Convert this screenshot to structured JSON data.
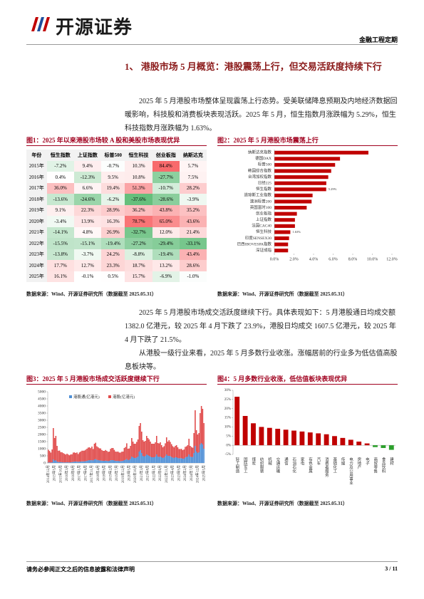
{
  "header": {
    "logo": "开源证券",
    "tag": "金融工程定期"
  },
  "section_title": "1、 港股市场 5 月概览：港股震荡上行，但交易活跃度持续下行",
  "paragraphs": [
    "2025 年 5 月港股市场整体呈现震荡上行态势。受美联储降息预期及内地经济数据回暖影响，科技股和消费板块表现活跃。2025 年 5 月，恒生指数月涨跌幅为 5.29%，恒生科技指数月涨跌幅为 1.63%。",
    "2025 年 5 月港股市场成交活跃度继续下行。具体表现如下：5 月港股通日均成交额 1382.0 亿港元，较 2025 年 4 月下跌了 23.9%，港股日均成交 1607.5 亿港元，较 2025 年 4 月下跌了 21.5%。",
    "从港股一级行业来看，2025 年 5 月多数行业收涨。涨幅居前的行业多为低估值高股息板块等。"
  ],
  "figure1": {
    "title": "图1：2025 年以来港股市场较 A 股和美股市场表现优异",
    "table": {
      "header": [
        "年份",
        "恒生指数",
        "上证指数",
        "标普500",
        "恒生科技",
        "创业板指",
        "纳斯达克"
      ],
      "rows": [
        [
          "2015年",
          "-7.2%",
          "9.4%",
          "-0.7%",
          "10.3%",
          "84.4%",
          "5.7%"
        ],
        [
          "2016年",
          "0.4%",
          "-12.3%",
          "9.5%",
          "10.8%",
          "-27.7%",
          "7.5%"
        ],
        [
          "2017年",
          "36.0%",
          "6.6%",
          "19.4%",
          "51.3%",
          "-10.7%",
          "28.2%"
        ],
        [
          "2018年",
          "-13.6%",
          "-24.6%",
          "-6.2%",
          "-37.6%",
          "-28.6%",
          "-3.9%"
        ],
        [
          "2019年",
          "9.1%",
          "22.3%",
          "28.9%",
          "36.2%",
          "43.8%",
          "35.2%"
        ],
        [
          "2020年",
          "-3.4%",
          "13.9%",
          "16.3%",
          "78.7%",
          "65.0%",
          "43.6%"
        ],
        [
          "2021年",
          "-14.1%",
          "4.8%",
          "26.9%",
          "-32.7%",
          "12.0%",
          "21.4%"
        ],
        [
          "2022年",
          "-15.5%",
          "-15.1%",
          "-19.4%",
          "-27.2%",
          "-29.4%",
          "-33.1%"
        ],
        [
          "2023年",
          "-13.8%",
          "-3.7%",
          "24.2%",
          "-8.8%",
          "-19.4%",
          "43.4%"
        ],
        [
          "2024年",
          "17.7%",
          "12.7%",
          "23.3%",
          "18.7%",
          "13.2%",
          "28.6%"
        ],
        [
          "2025年",
          "16.1%",
          "-0.1%",
          "0.5%",
          "15.7%",
          "-6.9%",
          "-1.0%"
        ]
      ]
    },
    "source": "数据来源：Wind、开源证券研究所（数据截至 2025.05.31）"
  },
  "chart_data": [
    {
      "type": "hbar",
      "title": "图2：2025 年 5 月港股市场震荡上行",
      "color": "#c00000",
      "categories": [
        "纳斯达克指数",
        "德国DAX",
        "标普500",
        "韩国综合指数",
        "台湾加权指数",
        "日经225",
        "恒生指数",
        "道琼斯工业指数",
        "澳洲标普200",
        "英国富时100",
        "创业板指",
        "上证指数",
        "法国CAC40",
        "恒生科技",
        "印度SENSEX30",
        "巴西IBOVESPA指数",
        "深证成指"
      ],
      "values": [
        9.6,
        6.7,
        6.2,
        5.8,
        5.5,
        5.3,
        5.29,
        3.9,
        3.8,
        3.3,
        2.3,
        2.1,
        2.1,
        1.63,
        1.5,
        1.4,
        1.4
      ],
      "value_labels": [
        null,
        null,
        null,
        null,
        null,
        null,
        "5.29%",
        null,
        null,
        null,
        null,
        null,
        null,
        "1.63%",
        null,
        null,
        null
      ],
      "xlim": [
        0,
        12
      ],
      "xticks": [
        {
          "value": 0,
          "label": "0.0%"
        },
        {
          "value": 2,
          "label": "2.0%"
        },
        {
          "value": 4,
          "label": "4.0%"
        },
        {
          "value": 6,
          "label": "6.0%"
        },
        {
          "value": 8,
          "label": "8.0%"
        },
        {
          "value": 10,
          "label": "10.0%"
        },
        {
          "value": 12,
          "label": "12.0%"
        }
      ],
      "grid": false,
      "source": "数据来源：Wind、开源证券研究所（数据截至 2025.05.31）"
    },
    {
      "type": "stacked_bar",
      "title": "图3：2025 年 5 月港股市场成交活跃度继续下行",
      "categories": [
        "2014年12月",
        null,
        null,
        null,
        null,
        "2015年5月",
        null,
        null,
        null,
        null,
        "2015年10月",
        null,
        null,
        null,
        null,
        "2016年3月",
        null,
        null,
        null,
        null,
        "2016年8月",
        null,
        null,
        null,
        null,
        "2017年1月",
        null,
        null,
        null,
        null,
        "2017年6月",
        null,
        null,
        null,
        null,
        "2017年11月",
        null,
        null,
        null,
        null,
        "2018年4月",
        null,
        null,
        null,
        null,
        "2018年9月",
        null,
        null,
        null,
        null,
        "2019年2月",
        null,
        null,
        null,
        null,
        "2019年7月",
        null,
        null,
        null,
        null,
        "2019年12月",
        null,
        null,
        null,
        null,
        "2020年5月",
        null,
        null,
        null,
        null,
        "2020年10月",
        null,
        null,
        null,
        null,
        "2021年3月",
        null,
        null,
        null,
        null,
        "2021年8月",
        null,
        null,
        null,
        null,
        "2022年1月",
        null,
        null,
        null,
        null,
        "2022年6月",
        null,
        null,
        null,
        null,
        "2022年11月",
        null,
        null,
        null,
        null,
        "2023年4月",
        null,
        null,
        null,
        null,
        "2023年9月",
        null,
        null,
        null,
        null,
        "2024年2月",
        null,
        null,
        null,
        null,
        "2024年7月",
        null,
        null,
        null,
        null,
        "2024年12月",
        null,
        null,
        null,
        null,
        "2025年5月"
      ],
      "series": [
        {
          "name": "港股通(亿港元)",
          "color": "#4f8fd6",
          "values": [
            30,
            40,
            30,
            50,
            250,
            150,
            200,
            100,
            60,
            70,
            60,
            50,
            40,
            40,
            40,
            50,
            40,
            40,
            50,
            60,
            80,
            90,
            100,
            90,
            80,
            90,
            100,
            110,
            110,
            120,
            130,
            150,
            180,
            200,
            190,
            200,
            180,
            250,
            270,
            220,
            200,
            180,
            170,
            160,
            150,
            150,
            160,
            150,
            130,
            150,
            190,
            200,
            200,
            170,
            150,
            140,
            150,
            130,
            130,
            140,
            150,
            200,
            220,
            280,
            200,
            220,
            300,
            450,
            400,
            350,
            350,
            380,
            450,
            800,
            900,
            700,
            500,
            450,
            500,
            600,
            550,
            500,
            450,
            400,
            400,
            400,
            450,
            600,
            450,
            420,
            450,
            400,
            350,
            380,
            480,
            600,
            500,
            500,
            480,
            420,
            380,
            350,
            400,
            400,
            350,
            330,
            330,
            340,
            300,
            300,
            380,
            420,
            450,
            600,
            450,
            420,
            420,
            700,
            1200,
            800,
            700,
            750,
            1300,
            1400,
            1300,
            1000
          ]
        },
        {
          "name": "港股(亿港元)",
          "color": "#e04a4a",
          "values": [
            900,
            800,
            700,
            900,
            2200,
            1600,
            1700,
            1100,
            800,
            800,
            700,
            700,
            650,
            600,
            550,
            600,
            550,
            500,
            550,
            550,
            650,
            650,
            600,
            650,
            550,
            650,
            700,
            750,
            750,
            750,
            800,
            850,
            900,
            900,
            850,
            950,
            800,
            1100,
            1150,
            950,
            900,
            850,
            850,
            750,
            700,
            700,
            750,
            700,
            650,
            650,
            800,
            850,
            850,
            750,
            650,
            650,
            650,
            600,
            600,
            650,
            650,
            850,
            900,
            1100,
            800,
            800,
            900,
            1300,
            1100,
            1000,
            1000,
            1100,
            1200,
            1800,
            1900,
            1500,
            1100,
            1050,
            1050,
            1300,
            1200,
            1150,
            1050,
            950,
            950,
            950,
            1000,
            1300,
            950,
            950,
            1000,
            850,
            750,
            800,
            900,
            1200,
            1000,
            1100,
            1000,
            900,
            800,
            750,
            800,
            850,
            750,
            650,
            650,
            650,
            600,
            650,
            750,
            750,
            800,
            1100,
            750,
            700,
            650,
            1400,
            2500,
            1500,
            1300,
            1350,
            2200,
            2600,
            2500,
            1800
          ]
        }
      ],
      "ylim": [
        0,
        5000
      ],
      "yticks": [
        0,
        500,
        1000,
        1500,
        2000,
        2500,
        3000,
        3500,
        4000,
        4500,
        5000
      ],
      "grid": false,
      "source": "数据来源：Wind、开源证券研究所（数据截至 2025.05.31）"
    },
    {
      "type": "bar",
      "title": "图4：5 月多数行业收涨，低估值板块表现优异",
      "color": "#c00000",
      "negative_color": "#2ca02c",
      "categories": [
        "轻工制造",
        "国防军工",
        "煤炭",
        "纺织服装",
        "机械",
        "交通运输",
        "通信",
        "石油石化",
        "家电",
        "有色金属",
        "汽车",
        "消费者服务",
        "基础化工",
        "传媒",
        "电力及公用事业",
        "房地产",
        "电子",
        "商贸零售",
        "食品饮料",
        "建材"
      ],
      "values": [
        26.5,
        16,
        12,
        10,
        9.5,
        9,
        8.5,
        8,
        7.5,
        7,
        6.5,
        6,
        5,
        4,
        3,
        2,
        1,
        -1,
        -1.5,
        -2.5
      ],
      "ylim": [
        -5,
        30
      ],
      "yticks": [
        {
          "value": -5,
          "label": "-5%"
        },
        {
          "value": 0,
          "label": "0%"
        },
        {
          "value": 5,
          "label": "5%"
        },
        {
          "value": 10,
          "label": "10%"
        },
        {
          "value": 15,
          "label": "15%"
        },
        {
          "value": 20,
          "label": "20%"
        },
        {
          "value": 25,
          "label": "25%"
        },
        {
          "value": 30,
          "label": "30%"
        }
      ],
      "grid": false,
      "source": "数据来源：Wind、开源证券研究所（数据截至 2025.05.31）"
    }
  ],
  "footer": {
    "disclaimer": "请务必参阅正文之后的信息披露和法律声明",
    "page": "3 / 11"
  }
}
